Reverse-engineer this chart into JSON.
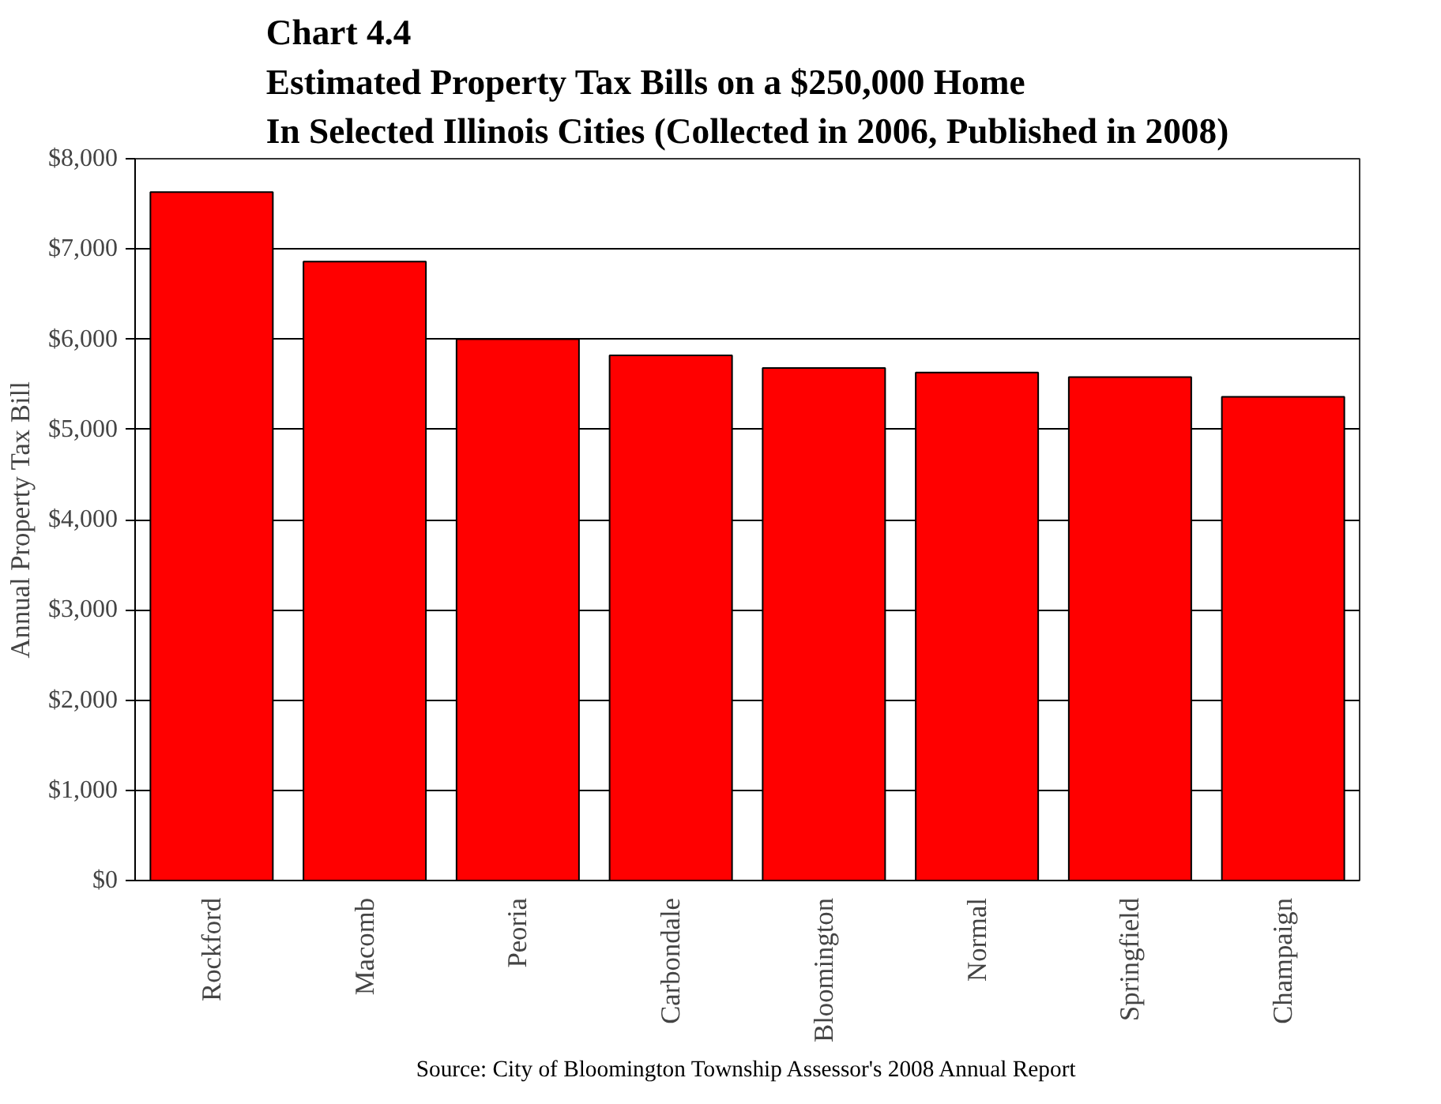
{
  "chart_data": {
    "type": "bar",
    "title": "Chart 4.4\nEstimated Property Tax Bills on a $250,000 Home\nIn Selected Illinois Cities (Collected in 2006, Published in 2008)",
    "ylabel": "Annual Property Tax Bill",
    "categories": [
      "Rockford",
      "Macomb",
      "Peoria",
      "Carbondale",
      "Bloomington",
      "Normal",
      "Springfield",
      "Champaign"
    ],
    "values": [
      7630,
      6860,
      6000,
      5820,
      5680,
      5630,
      5580,
      5360
    ],
    "color": "#ff0000",
    "ylim": [
      0,
      8000
    ],
    "yticks": [
      {
        "value": 0,
        "label": "$0"
      },
      {
        "value": 1000,
        "label": "$1,000"
      },
      {
        "value": 2000,
        "label": "$2,000"
      },
      {
        "value": 3000,
        "label": "$3,000"
      },
      {
        "value": 4000,
        "label": "$4,000"
      },
      {
        "value": 5000,
        "label": "$5,000"
      },
      {
        "value": 6000,
        "label": "$6,000"
      },
      {
        "value": 7000,
        "label": "$7,000"
      },
      {
        "value": 8000,
        "label": "$8,000"
      }
    ],
    "grid": "y",
    "annotations": [
      "Source: City of Bloomington Township Assessor's 2008 Annual Report"
    ]
  }
}
